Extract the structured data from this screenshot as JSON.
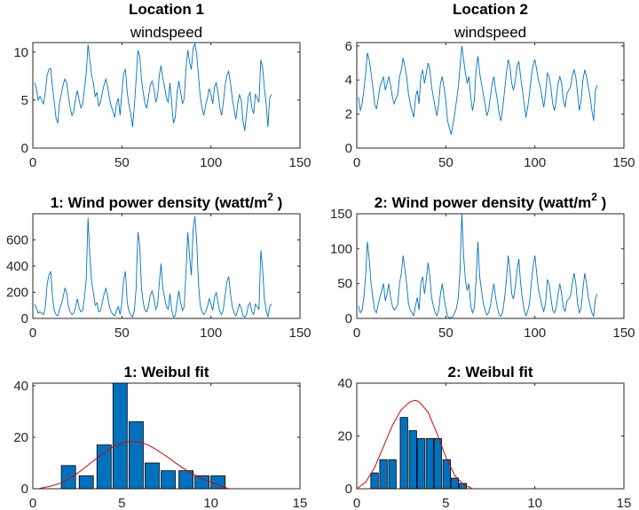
{
  "chart_data": [
    {
      "id": "p1",
      "type": "line",
      "title": "Location 1",
      "subtitle": "windspeed",
      "xlim": [
        0,
        150
      ],
      "ylim": [
        0,
        11
      ],
      "xticks": [
        0,
        50,
        100,
        150
      ],
      "yticks": [
        0,
        5,
        10
      ],
      "series": [
        {
          "color": "#0072bd",
          "x_start": 1,
          "x_step": 1,
          "values": [
            6.8,
            6.2,
            5.0,
            5.4,
            5.0,
            4.6,
            5.8,
            7.6,
            8.2,
            8.3,
            6.4,
            4.8,
            3.2,
            2.6,
            4.8,
            5.6,
            6.6,
            7.2,
            6.8,
            5.4,
            4.2,
            3.4,
            3.9,
            5.2,
            6.0,
            5.0,
            4.2,
            4.6,
            6.2,
            7.8,
            10.8,
            9.2,
            7.6,
            6.8,
            5.4,
            5.8,
            4.4,
            4.8,
            5.8,
            6.6,
            7.2,
            6.4,
            5.2,
            4.4,
            3.8,
            3.2,
            4.6,
            5.2,
            3.4,
            5.8,
            7.8,
            8.2,
            5.8,
            4.4,
            3.6,
            2.2,
            4.4,
            7.2,
            10.2,
            9.6,
            7.2,
            5.8,
            4.6,
            4.2,
            5.4,
            6.6,
            7.0,
            6.2,
            4.8,
            5.4,
            7.6,
            8.6,
            7.2,
            6.4,
            5.2,
            4.8,
            6.8,
            4.6,
            2.6,
            3.2,
            5.8,
            7.0,
            5.8,
            4.6,
            5.2,
            8.4,
            10.2,
            9.0,
            8.2,
            10.4,
            10.9,
            9.8,
            7.6,
            5.4,
            4.2,
            3.4,
            4.4,
            5.2,
            6.2,
            5.6,
            4.6,
            6.4,
            6.8,
            5.8,
            4.2,
            3.4,
            4.8,
            6.6,
            7.6,
            8.0,
            6.8,
            5.2,
            4.0,
            3.0,
            4.6,
            5.6,
            5.0,
            2.8,
            1.8,
            3.6,
            5.4,
            5.8,
            4.2,
            3.6,
            5.6,
            5.2,
            4.8,
            9.2,
            8.4,
            6.2,
            4.6,
            2.2,
            5.2,
            5.6
          ]
        }
      ]
    },
    {
      "id": "p2",
      "type": "line",
      "title": "Location 2",
      "subtitle": "windspeed",
      "xlim": [
        0,
        150
      ],
      "ylim": [
        0,
        6.2
      ],
      "xticks": [
        0,
        50,
        100,
        150
      ],
      "yticks": [
        0,
        2,
        4,
        6
      ],
      "series": [
        {
          "color": "#0072bd",
          "x_start": 1,
          "x_step": 1,
          "values": [
            3.0,
            2.2,
            2.6,
            3.4,
            4.4,
            5.6,
            5.2,
            4.4,
            3.6,
            2.6,
            2.3,
            2.9,
            3.6,
            3.9,
            4.2,
            3.4,
            3.8,
            4.2,
            3.7,
            3.0,
            2.6,
            2.9,
            3.2,
            4.2,
            4.6,
            5.3,
            4.8,
            4.2,
            3.2,
            2.6,
            2.2,
            1.8,
            3.0,
            3.4,
            2.6,
            4.2,
            4.6,
            3.8,
            4.4,
            5.0,
            4.6,
            3.6,
            3.0,
            2.4,
            1.9,
            2.6,
            3.8,
            4.2,
            3.6,
            2.8,
            1.6,
            1.2,
            0.8,
            1.4,
            2.0,
            2.8,
            3.6,
            4.8,
            6.0,
            5.2,
            4.4,
            3.8,
            4.2,
            3.0,
            2.2,
            2.8,
            4.6,
            5.4,
            4.4,
            3.8,
            3.2,
            2.6,
            1.9,
            2.2,
            3.0,
            3.8,
            4.2,
            3.4,
            2.8,
            2.0,
            1.6,
            2.4,
            3.4,
            4.4,
            5.2,
            4.8,
            3.8,
            3.4,
            4.0,
            4.8,
            5.1,
            4.2,
            3.4,
            2.6,
            1.8,
            2.4,
            3.2,
            4.2,
            4.9,
            5.2,
            4.6,
            4.0,
            3.6,
            3.0,
            2.4,
            3.2,
            4.4,
            4.2,
            3.6,
            2.6,
            2.2,
            2.8,
            3.8,
            4.2,
            3.8,
            2.8,
            2.4,
            3.2,
            3.4,
            3.6,
            4.2,
            4.6,
            4.2,
            3.2,
            2.2,
            2.8,
            4.0,
            4.6,
            4.2,
            3.6,
            3.0,
            2.2,
            1.6,
            3.4,
            3.7
          ]
        }
      ]
    },
    {
      "id": "p3",
      "type": "line",
      "title": "1: Wind power density (watt/m",
      "title_sup": "2",
      "title_end": " )",
      "xlim": [
        0,
        150
      ],
      "ylim": [
        0,
        800
      ],
      "xticks": [
        0,
        50,
        100,
        150
      ],
      "yticks": [
        0,
        200,
        400,
        600
      ],
      "series": [
        {
          "color": "#0072bd",
          "x_start": 1,
          "x_step": 1,
          "values": [
            110,
            80,
            40,
            50,
            40,
            30,
            80,
            260,
            330,
            360,
            170,
            60,
            30,
            20,
            70,
            110,
            160,
            230,
            200,
            90,
            50,
            30,
            40,
            90,
            150,
            80,
            50,
            60,
            160,
            300,
            770,
            480,
            280,
            200,
            100,
            120,
            50,
            60,
            120,
            190,
            230,
            170,
            90,
            50,
            30,
            20,
            60,
            90,
            30,
            120,
            300,
            360,
            120,
            50,
            30,
            10,
            60,
            230,
            660,
            560,
            230,
            120,
            60,
            50,
            100,
            180,
            210,
            150,
            70,
            100,
            270,
            420,
            230,
            160,
            90,
            70,
            190,
            60,
            10,
            20,
            120,
            210,
            120,
            60,
            90,
            360,
            660,
            470,
            330,
            680,
            780,
            600,
            270,
            100,
            50,
            30,
            50,
            90,
            150,
            110,
            60,
            160,
            200,
            120,
            50,
            30,
            70,
            180,
            280,
            320,
            190,
            90,
            40,
            20,
            60,
            110,
            80,
            20,
            10,
            30,
            100,
            120,
            50,
            30,
            110,
            90,
            70,
            520,
            380,
            150,
            60,
            10,
            90,
            110
          ]
        }
      ]
    },
    {
      "id": "p4",
      "type": "line",
      "title": "2: Wind power density (watt/m",
      "title_sup": "2",
      "title_end": " )",
      "xlim": [
        0,
        150
      ],
      "ylim": [
        0,
        150
      ],
      "xticks": [
        0,
        50,
        100,
        150
      ],
      "yticks": [
        0,
        50,
        100,
        150
      ],
      "series": [
        {
          "color": "#0072bd",
          "x_start": 1,
          "x_step": 1,
          "values": [
            18,
            8,
            12,
            30,
            60,
            110,
            85,
            50,
            30,
            12,
            8,
            20,
            30,
            40,
            50,
            25,
            35,
            50,
            30,
            18,
            12,
            15,
            20,
            50,
            65,
            90,
            70,
            50,
            22,
            12,
            8,
            4,
            18,
            30,
            12,
            50,
            60,
            35,
            55,
            80,
            60,
            30,
            18,
            8,
            4,
            12,
            35,
            50,
            30,
            15,
            3,
            1,
            1,
            3,
            8,
            15,
            30,
            70,
            150,
            90,
            55,
            40,
            50,
            18,
            8,
            15,
            55,
            110,
            60,
            40,
            22,
            12,
            5,
            8,
            18,
            35,
            50,
            30,
            15,
            5,
            3,
            10,
            30,
            55,
            90,
            70,
            35,
            28,
            45,
            70,
            85,
            50,
            28,
            12,
            4,
            10,
            22,
            50,
            75,
            90,
            65,
            42,
            30,
            18,
            10,
            22,
            55,
            50,
            30,
            12,
            8,
            15,
            35,
            50,
            35,
            15,
            10,
            25,
            28,
            32,
            50,
            65,
            50,
            22,
            8,
            15,
            42,
            65,
            50,
            30,
            18,
            8,
            3,
            28,
            35
          ]
        }
      ]
    },
    {
      "id": "p5",
      "type": "bar",
      "title": "1: Weibul fit",
      "xlim": [
        0,
        15
      ],
      "ylim": [
        0,
        41
      ],
      "xticks": [
        0,
        5,
        10,
        15
      ],
      "yticks": [
        0,
        20,
        40
      ],
      "bar_width": 0.8,
      "bar_color": "#0072bd",
      "bars": [
        {
          "x": 2.0,
          "y": 9
        },
        {
          "x": 3.0,
          "y": 5
        },
        {
          "x": 4.0,
          "y": 17
        },
        {
          "x": 4.9,
          "y": 41
        },
        {
          "x": 5.8,
          "y": 26
        },
        {
          "x": 6.7,
          "y": 10
        },
        {
          "x": 7.6,
          "y": 7
        },
        {
          "x": 8.6,
          "y": 7
        },
        {
          "x": 9.5,
          "y": 5
        },
        {
          "x": 10.4,
          "y": 5
        }
      ],
      "fit": {
        "color": "#d00000",
        "x": [
          0.3,
          1,
          1.5,
          2,
          2.5,
          3,
          3.5,
          4,
          4.5,
          5,
          5.5,
          6,
          6.5,
          7,
          7.5,
          8,
          8.5,
          9,
          9.5,
          10,
          10.5,
          11
        ],
        "y": [
          0,
          1,
          2,
          3.8,
          6,
          8.6,
          11.4,
          14,
          16.2,
          17.8,
          18.4,
          18.1,
          16.9,
          14.9,
          12.6,
          10.1,
          7.7,
          5.6,
          3.9,
          2.5,
          1.2,
          0
        ]
      }
    },
    {
      "id": "p6",
      "type": "bar",
      "title": "2: Weibul fit",
      "xlim": [
        0,
        15
      ],
      "ylim": [
        0,
        40
      ],
      "xticks": [
        0,
        5,
        10,
        15
      ],
      "yticks": [
        0,
        20,
        40
      ],
      "bar_width": 0.42,
      "bar_color": "#0072bd",
      "bars": [
        {
          "x": 1.0,
          "y": 6
        },
        {
          "x": 1.5,
          "y": 11
        },
        {
          "x": 2.0,
          "y": 11
        },
        {
          "x": 2.65,
          "y": 27
        },
        {
          "x": 3.15,
          "y": 22
        },
        {
          "x": 3.6,
          "y": 19
        },
        {
          "x": 4.1,
          "y": 19
        },
        {
          "x": 4.55,
          "y": 19
        },
        {
          "x": 5.05,
          "y": 11
        },
        {
          "x": 5.5,
          "y": 4
        },
        {
          "x": 5.95,
          "y": 2
        }
      ],
      "fit": {
        "color": "#d00000",
        "x": [
          0,
          0.5,
          1,
          1.5,
          2,
          2.5,
          3,
          3.3,
          3.5,
          4,
          4.5,
          5,
          5.5,
          6,
          6.5
        ],
        "y": [
          0,
          2.5,
          8,
          16,
          24,
          30,
          33,
          33.5,
          33,
          29,
          21,
          12,
          5,
          1.5,
          0
        ]
      }
    }
  ]
}
